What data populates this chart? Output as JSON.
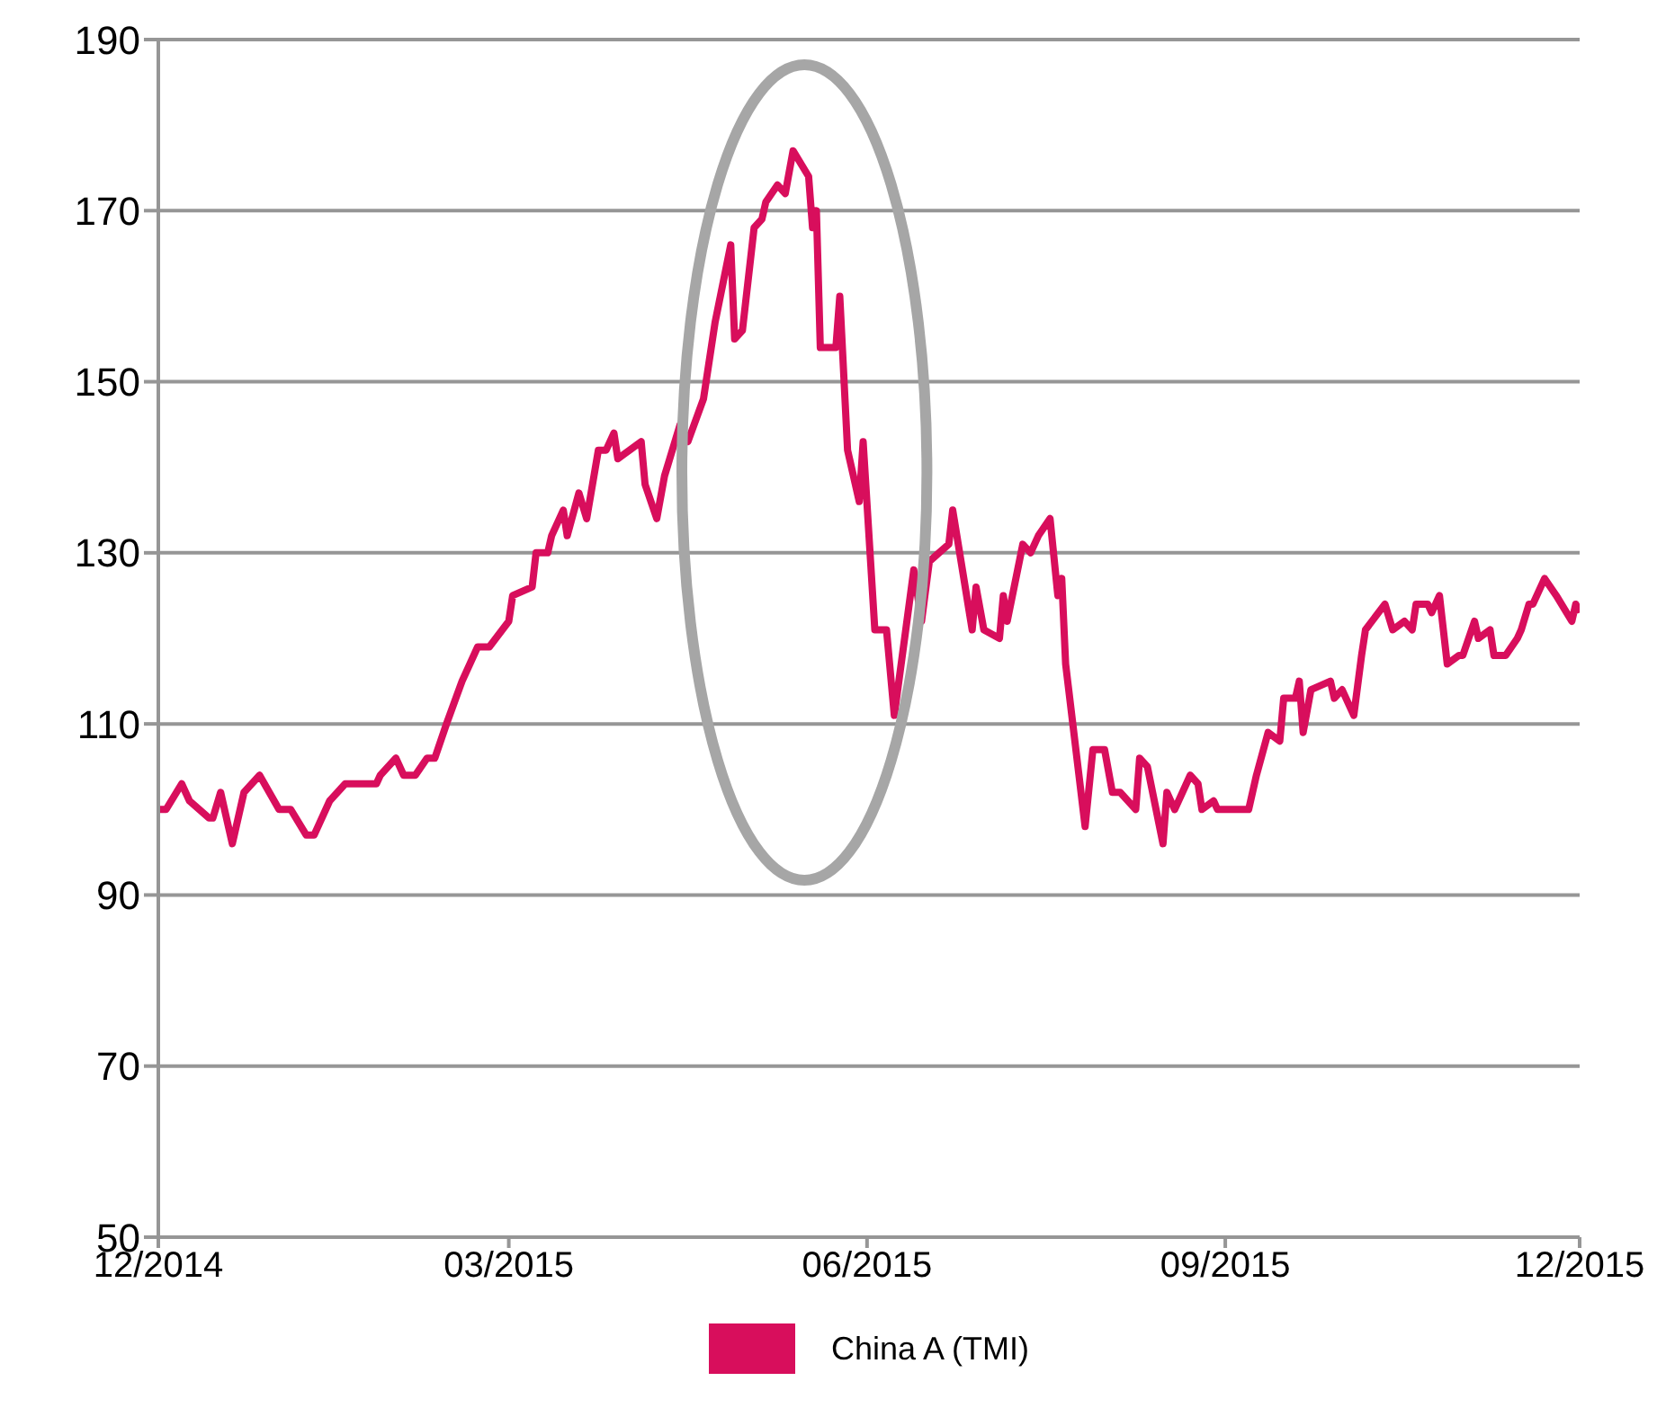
{
  "chart_data": {
    "type": "line",
    "x": [
      "2014-12-01",
      "2014-12-03",
      "2014-12-07",
      "2014-12-09",
      "2014-12-14",
      "2014-12-15",
      "2014-12-17",
      "2014-12-20",
      "2014-12-23",
      "2014-12-27",
      "2015-01-01",
      "2015-01-04",
      "2015-01-08",
      "2015-01-10",
      "2015-01-14",
      "2015-01-18",
      "2015-01-26",
      "2015-01-27",
      "2015-01-31",
      "2015-02-02",
      "2015-02-05",
      "2015-02-08",
      "2015-02-10",
      "2015-02-13",
      "2015-02-17",
      "2015-02-21",
      "2015-02-24",
      "2015-03-01",
      "2015-03-02",
      "2015-03-07",
      "2015-03-08",
      "2015-03-11",
      "2015-03-12",
      "2015-03-15",
      "2015-03-16",
      "2015-03-19",
      "2015-03-21",
      "2015-03-24",
      "2015-03-26",
      "2015-03-28",
      "2015-03-29",
      "2015-04-04",
      "2015-04-05",
      "2015-04-08",
      "2015-04-10",
      "2015-04-14",
      "2015-04-16",
      "2015-04-20",
      "2015-04-23",
      "2015-04-27",
      "2015-04-28",
      "2015-04-30",
      "2015-05-03",
      "2015-05-05",
      "2015-05-06",
      "2015-05-09",
      "2015-05-11",
      "2015-05-13",
      "2015-05-17",
      "2015-05-18",
      "2015-05-19",
      "2015-05-20",
      "2015-05-24",
      "2015-05-25",
      "2015-05-27",
      "2015-05-30",
      "2015-05-31",
      "2015-06-03",
      "2015-06-06",
      "2015-06-08",
      "2015-06-13",
      "2015-06-15",
      "2015-06-17",
      "2015-06-22",
      "2015-06-23",
      "2015-06-28",
      "2015-06-29",
      "2015-07-01",
      "2015-07-05",
      "2015-07-06",
      "2015-07-07",
      "2015-07-11",
      "2015-07-13",
      "2015-07-15",
      "2015-07-18",
      "2015-07-20",
      "2015-07-21",
      "2015-07-22",
      "2015-07-27",
      "2015-07-29",
      "2015-08-01",
      "2015-08-03",
      "2015-08-05",
      "2015-08-09",
      "2015-08-10",
      "2015-08-12",
      "2015-08-16",
      "2015-08-17",
      "2015-08-19",
      "2015-08-23",
      "2015-08-25",
      "2015-08-26",
      "2015-08-29",
      "2015-08-30",
      "2015-09-07",
      "2015-09-09",
      "2015-09-12",
      "2015-09-15",
      "2015-09-16",
      "2015-09-19",
      "2015-09-20",
      "2015-09-21",
      "2015-09-23",
      "2015-09-28",
      "2015-09-29",
      "2015-10-01",
      "2015-10-04",
      "2015-10-06",
      "2015-10-07",
      "2015-10-12",
      "2015-10-14",
      "2015-10-17",
      "2015-10-19",
      "2015-10-20",
      "2015-10-23",
      "2015-10-24",
      "2015-10-26",
      "2015-10-28",
      "2015-10-31",
      "2015-11-01",
      "2015-11-04",
      "2015-11-05",
      "2015-11-08",
      "2015-11-09",
      "2015-11-12",
      "2015-11-15",
      "2015-11-16",
      "2015-11-18",
      "2015-11-19",
      "2015-11-22",
      "2015-11-25",
      "2015-11-29",
      "2015-11-30",
      "2015-12-01"
    ],
    "series": [
      {
        "name": "China A (TMI)",
        "color": "#d80e5c",
        "values": [
          100,
          100,
          103,
          101,
          99,
          99,
          102,
          96,
          102,
          104,
          100,
          100,
          97,
          97,
          101,
          103,
          103,
          104,
          106,
          104,
          104,
          106,
          106,
          110,
          115,
          119,
          119,
          122,
          125,
          126,
          130,
          130,
          132,
          135,
          132,
          137,
          134,
          142,
          142,
          144,
          141,
          143,
          138,
          134,
          139,
          145,
          143,
          148,
          157,
          166,
          155,
          156,
          168,
          169,
          171,
          173,
          172,
          177,
          174,
          168,
          170,
          154,
          154,
          160,
          142,
          136,
          143,
          121,
          121,
          111,
          128,
          122,
          129,
          131,
          135,
          121,
          126,
          121,
          120,
          125,
          122,
          131,
          130,
          132,
          134,
          125,
          127,
          117,
          98,
          107,
          107,
          102,
          102,
          100,
          106,
          105,
          96,
          102,
          100,
          104,
          103,
          100,
          101,
          100,
          100,
          104,
          109,
          108,
          113,
          113,
          115,
          109,
          114,
          115,
          113,
          114,
          111,
          118,
          121,
          124,
          121,
          122,
          121,
          124,
          124,
          123,
          125,
          117,
          118,
          118,
          122,
          120,
          121,
          118,
          118,
          120,
          121,
          124,
          124,
          127,
          125,
          122,
          124,
          123
        ]
      }
    ],
    "xlim": [
      "2014-12-01",
      "2015-12-01"
    ],
    "xticks": [
      {
        "value": "2014-12-01",
        "label": "12/2014"
      },
      {
        "value": "2015-03-01",
        "label": "03/2015"
      },
      {
        "value": "2015-06-01",
        "label": "06/2015"
      },
      {
        "value": "2015-09-01",
        "label": "09/2015"
      },
      {
        "value": "2015-12-01",
        "label": "12/2015"
      }
    ],
    "ylim": [
      50,
      190
    ],
    "yticks": [
      50,
      70,
      90,
      110,
      130,
      150,
      170,
      190
    ],
    "grid": "y",
    "legend": "bottom",
    "marker": "none",
    "line_style": "solid"
  }
}
